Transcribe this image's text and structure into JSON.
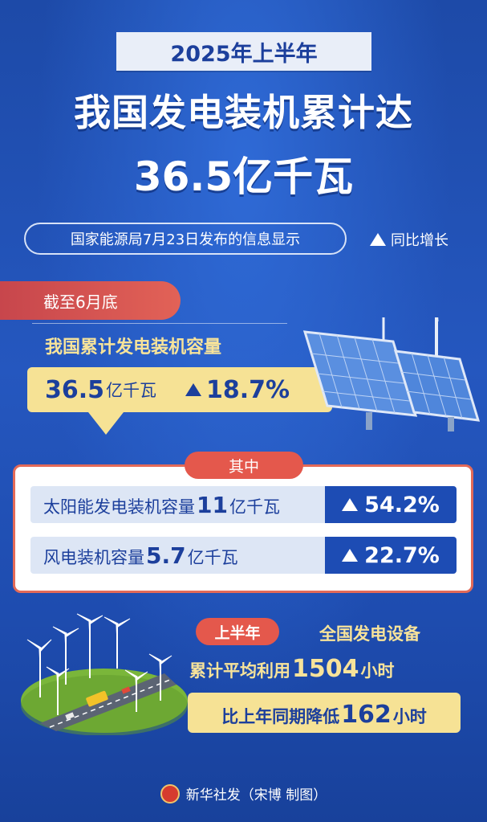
{
  "header": {
    "period": "2025年上半年",
    "title_line1": "我国发电装机累计达",
    "title_line2": "36.5亿千瓦"
  },
  "source": {
    "text": "国家能源局7月23日发布的信息显示",
    "legend_label": "同比增长"
  },
  "cumulative": {
    "ribbon": "截至6月底",
    "label": "我国累计发电装机容量",
    "value": "36.5",
    "unit": "亿千瓦",
    "growth": "18.7%"
  },
  "breakdown": {
    "badge": "其中",
    "solar": {
      "label": "太阳能发电装机容量",
      "value": "11",
      "unit": "亿千瓦",
      "growth": "54.2%"
    },
    "wind": {
      "label": "风电装机容量",
      "value": "5.7",
      "unit": "亿千瓦",
      "growth": "22.7%"
    }
  },
  "utilization": {
    "badge": "上半年",
    "subject": "全国发电设备",
    "avg_prefix": "累计平均利用",
    "avg_value": "1504",
    "avg_unit": "小时",
    "cmp_prefix": "比上年同期降低",
    "cmp_value": "162",
    "cmp_unit": "小时"
  },
  "credit": {
    "logo_text": "新华",
    "text": "新华社发（宋博 制图）"
  },
  "icons": [
    "up-triangle-icon",
    "wind-turbine-icon",
    "solar-panel-icon",
    "xinhua-logo-icon"
  ],
  "colors": {
    "background": "#1f4fb0",
    "accent_red": "#e4584c",
    "accent_yellow": "#f6e295",
    "text_dark_blue": "#1c3f9c"
  }
}
